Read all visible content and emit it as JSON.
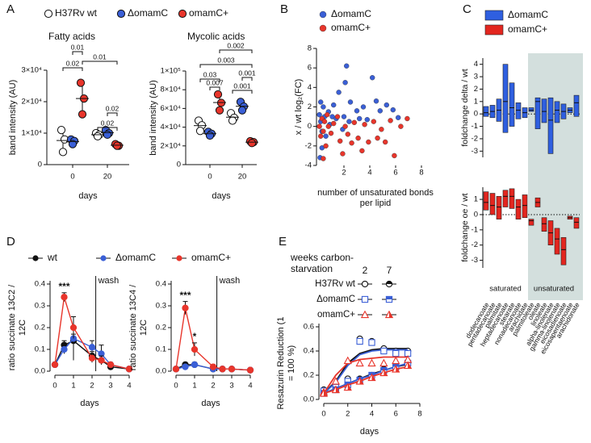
{
  "chart_data": [
    {
      "type": "dotplot",
      "panel": "A",
      "title": "Fatty acids",
      "y_label": "band intensity (AU)",
      "x_label": "days",
      "categories": [
        "0",
        "20"
      ],
      "ylim": [
        0,
        30000
      ],
      "yticks": [
        0,
        {
          "value": 10000,
          "label": "1×10⁴"
        },
        {
          "value": 20000,
          "label": "2×10⁴"
        },
        {
          "value": 30000,
          "label": "3×10⁴"
        }
      ],
      "series": [
        {
          "name": "H37Rv wt",
          "color": "#ffffff",
          "values": [
            [
              11000,
              8000,
              4000
            ],
            [
              10000,
              9500,
              9000
            ]
          ]
        },
        {
          "name": "ΔomamC",
          "color": "#3a5fd6",
          "values": [
            [
              8000,
              7500,
              6500
            ],
            [
              11000,
              10000,
              9500
            ]
          ]
        },
        {
          "name": "omamC+",
          "color": "#e8352b",
          "values": [
            [
              26000,
              21000,
              16000
            ],
            [
              6500,
              6000,
              6000
            ]
          ]
        }
      ],
      "annotations": [
        "0.01",
        "0.02",
        "0.01",
        "0.02",
        "0.02"
      ]
    },
    {
      "type": "dotplot",
      "title": "Mycolic acids",
      "y_label": "band intensity (AU)",
      "x_label": "days",
      "categories": [
        "0",
        "20"
      ],
      "ylim": [
        0,
        100000
      ],
      "yticks": [
        0,
        {
          "value": 20000,
          "label": "2×10⁴"
        },
        {
          "value": 40000,
          "label": "4×10⁴"
        },
        {
          "value": 60000,
          "label": "6×10⁴"
        },
        {
          "value": 80000,
          "label": "8×10⁴"
        },
        {
          "value": 100000,
          "label": "1×10⁵"
        }
      ],
      "series": [
        {
          "color": "#ffffff",
          "values": [
            [
              47000,
              42000,
              36000
            ],
            [
              55000,
              50000,
              47000
            ]
          ]
        },
        {
          "color": "#3a5fd6",
          "values": [
            [
              35000,
              33000,
              31000
            ],
            [
              67000,
              62000,
              58000
            ]
          ]
        },
        {
          "color": "#e8352b",
          "values": [
            [
              75000,
              66000,
              58000
            ],
            [
              25000,
              24000,
              23000
            ]
          ]
        }
      ],
      "annotations": [
        "0.002",
        "0.003",
        "0.03",
        "0.007",
        "0.001",
        "0.001"
      ]
    },
    {
      "type": "scatter",
      "panel": "B",
      "y_label": "x / wt log₂(FC)",
      "x_label": "number of unsaturated bonds per lipid",
      "xlim": [
        0,
        8
      ],
      "xticks": [
        2,
        4,
        6,
        8
      ],
      "ylim": [
        -4,
        8
      ],
      "yticks": [
        -4,
        -2,
        0,
        2,
        4,
        6,
        8
      ],
      "series": [
        {
          "name": "ΔomamC",
          "color": "#3a5fd6",
          "x": [
            0.1,
            0.2,
            0.3,
            0.4,
            0.5,
            0.6,
            0.2,
            0.8,
            0.9,
            1.1,
            1.2,
            1.4,
            1.6,
            1.9,
            2,
            2.1,
            2.2,
            2.4,
            2.5,
            3,
            3.2,
            3.5,
            3.8,
            4.2,
            4.5,
            4.8,
            5.3,
            5.8,
            6.2,
            0.3,
            0.15
          ],
          "y": [
            1.2,
            0.5,
            -0.5,
            2,
            1,
            -1,
            2.5,
            1.5,
            0.2,
            1,
            2.2,
            0.8,
            3.5,
            -0.3,
            1,
            4.5,
            6.2,
            0.5,
            2.5,
            1.6,
            0.8,
            2,
            0.7,
            5,
            2.6,
            1.6,
            2.2,
            1.7,
            0.9,
            -2.2,
            -3.2
          ]
        },
        {
          "name": "omamC+",
          "color": "#e8352b",
          "x": [
            0.1,
            0.2,
            0.3,
            0.4,
            0.5,
            0.6,
            0.7,
            0.8,
            1,
            1.2,
            1.5,
            1.7,
            1.9,
            2.1,
            2.3,
            2.6,
            2.8,
            3.1,
            3.4,
            3.6,
            3.9,
            4.3,
            4.6,
            4.9,
            5.2,
            5.6,
            5.9,
            6.4,
            6.9,
            0.4
          ],
          "y": [
            0,
            -1,
            0.8,
            -0.5,
            0.5,
            -2,
            1.2,
            0,
            -0.7,
            0.3,
            1,
            -1.5,
            -2.8,
            0,
            -0.8,
            -1.7,
            0.4,
            -1.2,
            -2.5,
            0.2,
            -1.6,
            0.5,
            -1.2,
            -0.3,
            -1.6,
            0.6,
            -3,
            0,
            0.8,
            -3.3
          ]
        }
      ]
    },
    {
      "type": "rangebar",
      "panel": "C",
      "categories": [
        "dodecanoate",
        "pentadecanoate",
        "palmitate",
        "heptadecanoate",
        "stearate",
        "nonadecanoate",
        "arachidate",
        "palmitoleate",
        "oleate",
        "linoleate",
        "alpha-linolenate",
        "gamma-linolenate",
        "eicosadienoate",
        "eicosapentaenoate",
        "arachidonate"
      ],
      "groups": [
        "saturated",
        "unsaturated"
      ],
      "series": [
        {
          "name": "ΔomamC",
          "color": "#2f5fe0",
          "y_label": "foldchange delta / wt",
          "ylim": [
            -3.5,
            4.5
          ],
          "yticks": [
            -3,
            -2,
            -1,
            0,
            1,
            2,
            3,
            4
          ],
          "low": [
            -0.2,
            -0.3,
            -0.6,
            -1.5,
            -1.0,
            -0.4,
            -0.3,
            0.2,
            -1.2,
            -0.7,
            -3.2,
            -0.7,
            -0.4,
            0.1,
            -0.2
          ],
          "median": [
            0.1,
            0.2,
            0.3,
            1.0,
            0.5,
            0.3,
            0.1,
            0.3,
            1.0,
            0.2,
            -0.5,
            0.3,
            0.2,
            0.3,
            0.9
          ],
          "high": [
            0.6,
            0.7,
            1.2,
            4.0,
            2.5,
            0.9,
            0.5,
            0.5,
            1.3,
            1.2,
            1.3,
            1.0,
            0.8,
            0.5,
            1.5
          ]
        },
        {
          "name": "omamC+",
          "color": "#e3261f",
          "y_label": "foldchange oe / wt",
          "ylim": [
            -3.5,
            1.8
          ],
          "yticks": [
            -3,
            -2,
            -1,
            0,
            1
          ],
          "low": [
            0.3,
            0.0,
            -0.3,
            0.5,
            0.4,
            -0.3,
            -0.2,
            -0.7,
            0.5,
            -1.1,
            -2.0,
            -2.6,
            -3.3,
            -0.3,
            -0.9
          ],
          "median": [
            0.8,
            0.6,
            0.5,
            1.2,
            1.2,
            0.5,
            0.6,
            -0.4,
            0.8,
            -0.6,
            -1.2,
            -1.6,
            -2.3,
            -0.2,
            -0.5
          ],
          "high": [
            1.5,
            1.4,
            1.2,
            1.6,
            1.7,
            1.0,
            1.3,
            -0.3,
            1.1,
            -0.2,
            -0.4,
            -0.9,
            -1.5,
            -0.1,
            -0.2
          ]
        }
      ]
    },
    {
      "type": "line",
      "panel": "D",
      "y_label": "ratio succinate 13C2 / 12C",
      "x_label": "days",
      "x": [
        0,
        0.5,
        1,
        2,
        2.5,
        3,
        4
      ],
      "xlim": [
        0,
        4
      ],
      "xticks": [
        0,
        1,
        2,
        3,
        4
      ],
      "ylim": [
        0,
        0.4
      ],
      "yticks": [
        {
          "value": 0,
          "label": "0.0"
        },
        0.1,
        0.2,
        0.3,
        0.4
      ],
      "series": [
        {
          "name": "wt",
          "color": "#111111",
          "values": [
            0.03,
            0.12,
            0.14,
            0.07,
            0.05,
            0.02,
            0.01
          ],
          "errors": [
            0.01,
            0.02,
            0.03,
            0.02,
            0.02,
            0.01,
            0.01
          ]
        },
        {
          "name": "ΔomamC",
          "color": "#3a5fd6",
          "values": [
            0.03,
            0.1,
            0.15,
            0.11,
            0.08,
            0.03,
            0.01
          ],
          "errors": [
            0.01,
            0.02,
            0.1,
            0.03,
            0.04,
            0.01,
            0.01
          ]
        },
        {
          "name": "omamC+",
          "color": "#e8352b",
          "values": [
            0.03,
            0.34,
            0.2,
            0.06,
            0.05,
            0.03,
            0.01
          ],
          "errors": [
            0.01,
            0.02,
            0.05,
            0.02,
            0.02,
            0.01,
            0.01
          ]
        }
      ],
      "annotations": [
        {
          "text": "***",
          "x": 0.5
        },
        {
          "text": "wash",
          "x": 2.2
        }
      ]
    },
    {
      "type": "line",
      "y_label": "ratio succinate 13C4 / 12C",
      "x_label": "days",
      "x": [
        0,
        0.5,
        1,
        2,
        2.5,
        3,
        4
      ],
      "xlim": [
        0,
        4
      ],
      "xticks": [
        0,
        1,
        2,
        3,
        4
      ],
      "ylim": [
        0,
        0.4
      ],
      "yticks": [
        {
          "value": 0,
          "label": "0.0"
        },
        0.1,
        0.2,
        0.3,
        0.4
      ],
      "series": [
        {
          "color": "#111111",
          "values": [
            0.01,
            0.03,
            0.03,
            0.01,
            0.01,
            0.01,
            0.005
          ],
          "errors": [
            0.005,
            0.01,
            0.01,
            0.005,
            0.005,
            0.005,
            0.005
          ]
        },
        {
          "color": "#3a5fd6",
          "values": [
            0.01,
            0.02,
            0.03,
            0.01,
            0.01,
            0.01,
            0.005
          ],
          "errors": [
            0.005,
            0.01,
            0.01,
            0.005,
            0.005,
            0.005,
            0.005
          ]
        },
        {
          "color": "#e8352b",
          "values": [
            0.01,
            0.29,
            0.1,
            0.02,
            0.01,
            0.01,
            0.005
          ],
          "errors": [
            0.005,
            0.03,
            0.03,
            0.01,
            0.005,
            0.005,
            0.005
          ]
        }
      ],
      "annotations": [
        {
          "text": "***",
          "x": 0.5
        },
        {
          "text": "*",
          "x": 1
        },
        {
          "text": "wash",
          "x": 2.2
        }
      ]
    },
    {
      "type": "line",
      "panel": "E",
      "y_label": "Resazurin Reduction (1 = 100 %)",
      "x_label": "days",
      "legend_title": "weeks carbon-starvation",
      "weeks": [
        "2",
        "7"
      ],
      "x": [
        0,
        1,
        2,
        3,
        4,
        5,
        6,
        7
      ],
      "xlim": [
        0,
        8
      ],
      "xticks": [
        0,
        2,
        4,
        6,
        8
      ],
      "ylim": [
        0,
        0.6
      ],
      "yticks": [
        {
          "value": 0,
          "label": "0.0"
        },
        0.2,
        0.4,
        0.6
      ],
      "series": [
        {
          "name": "H37Rv wt",
          "color": "#111111",
          "marker": "circle",
          "values": [
            [
              0.08,
              0.1,
              0.17,
              0.5,
              0.48,
              0.42,
              0.4,
              0.4
            ],
            [
              0.05,
              0.08,
              0.12,
              0.17,
              0.2,
              0.25,
              0.28,
              0.3
            ]
          ],
          "fit": [
            [
              0.05,
              0.15,
              0.3,
              0.38,
              0.41,
              0.42,
              0.42,
              0.42
            ],
            [
              0.05,
              0.09,
              0.13,
              0.17,
              0.21,
              0.24,
              0.27,
              0.29
            ]
          ]
        },
        {
          "name": "ΔomamC",
          "color": "#3a5fd6",
          "marker": "square",
          "values": [
            [
              0.07,
              0.1,
              0.15,
              0.48,
              0.47,
              0.4,
              0.38,
              0.38
            ],
            [
              0.05,
              0.08,
              0.12,
              0.16,
              0.2,
              0.24,
              0.27,
              0.3
            ]
          ],
          "fit": [
            [
              0.05,
              0.14,
              0.28,
              0.37,
              0.4,
              0.41,
              0.41,
              0.41
            ],
            [
              0.05,
              0.09,
              0.13,
              0.17,
              0.2,
              0.24,
              0.27,
              0.3
            ]
          ]
        },
        {
          "name": "omamC+",
          "color": "#e8352b",
          "marker": "triangle",
          "values": [
            [
              0.06,
              0.15,
              0.32,
              0.3,
              0.3,
              0.3,
              0.32,
              0.33
            ],
            [
              0.05,
              0.08,
              0.1,
              0.15,
              0.18,
              0.22,
              0.25,
              0.28
            ]
          ],
          "fit": [
            [
              0.05,
              0.2,
              0.3,
              0.33,
              0.34,
              0.35,
              0.35,
              0.35
            ],
            [
              0.05,
              0.08,
              0.12,
              0.15,
              0.19,
              0.22,
              0.25,
              0.27
            ]
          ]
        }
      ]
    }
  ]
}
